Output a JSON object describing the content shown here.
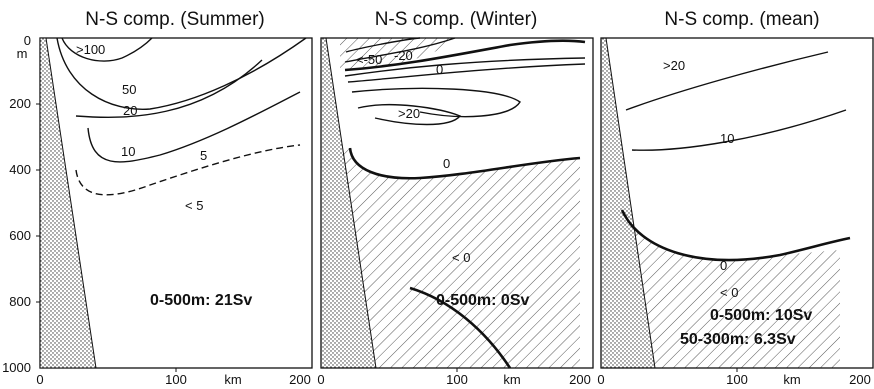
{
  "panels": [
    {
      "title": "N-S comp. (Summer)",
      "stat_lines": [
        "0-500m: 21Sv"
      ],
      "contour_labels": {
        "c100": ">100",
        "c50": "50",
        "c20": "20",
        "c10": "10",
        "c5": "5",
        "lt5": "< 5"
      }
    },
    {
      "title": "N-S comp. (Winter)",
      "stat_lines": [
        "0-500m: 0Sv"
      ],
      "contour_labels": {
        "cm50": "<-50",
        "cm20": "-20",
        "c0a": "0",
        "cp20": ">20",
        "c0b": "0",
        "lt0": "< 0"
      }
    },
    {
      "title": "N-S comp. (mean)",
      "stat_lines": [
        "0-500m: 10Sv",
        "50-300m: 6.3Sv"
      ],
      "contour_labels": {
        "gt20": ">20",
        "c10": "10",
        "c0": "0",
        "lt0": "< 0"
      }
    }
  ],
  "depth_axis": {
    "unit": "m",
    "ticks": [
      "0",
      "200",
      "400",
      "600",
      "800",
      "1000"
    ]
  },
  "distance_axis": {
    "unit": "km",
    "ticks": [
      "0",
      "100",
      "200"
    ]
  }
}
